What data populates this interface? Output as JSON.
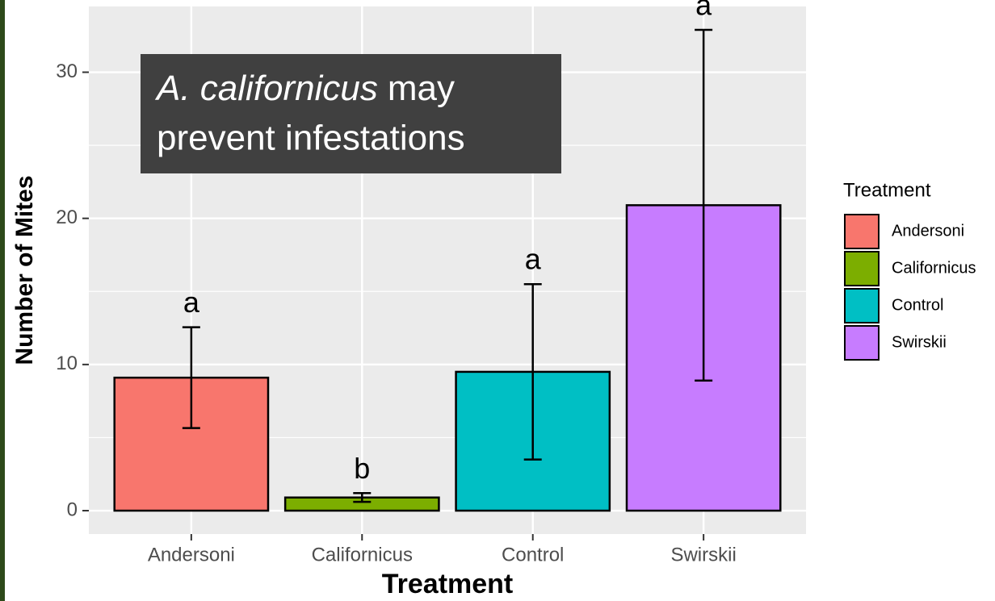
{
  "chart_data": {
    "type": "bar",
    "categories": [
      "Andersoni",
      "Californicus",
      "Control",
      "Swirskii"
    ],
    "values": [
      9.1,
      0.9,
      9.5,
      20.9
    ],
    "errors": [
      3.45,
      0.3,
      6,
      12
    ],
    "letters": [
      "a",
      "b",
      "a",
      "a"
    ],
    "colors": [
      "#F8766D",
      "#7CAE00",
      "#00BFC4",
      "#C77CFF"
    ],
    "xlabel": "Treatment",
    "ylabel": "Number of Mites",
    "legend_title": "Treatment",
    "legend": "right",
    "ylim": [
      -1.6,
      34.5
    ],
    "yticks": [
      0,
      10,
      20,
      30
    ],
    "grid": true,
    "annotation": {
      "italic": "A. californicus",
      "line1_rest": "may",
      "line2": "prevent infestations"
    }
  }
}
